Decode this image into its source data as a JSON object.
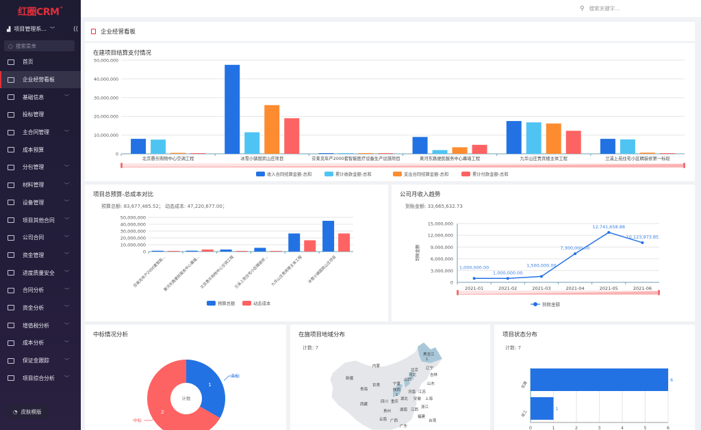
{
  "app": {
    "logo": "红圈CRM",
    "system": "项目管理系...",
    "search_placeholder": "搜索菜单",
    "skin_label": "皮肤模版",
    "top_search_placeholder": "搜索关键字..."
  },
  "sidebar": {
    "items": [
      {
        "label": "首页",
        "expandable": false,
        "icon": "home-icon"
      },
      {
        "label": "企业经营看板",
        "expandable": false,
        "active": true,
        "icon": "dashboard-icon"
      },
      {
        "label": "基础信息",
        "expandable": true,
        "icon": "copy-icon"
      },
      {
        "label": "投标管理",
        "expandable": false,
        "icon": "document-icon"
      },
      {
        "label": "主合同管理",
        "expandable": true,
        "icon": "window-icon"
      },
      {
        "label": "成本预算",
        "expandable": false,
        "icon": "budget-icon"
      },
      {
        "label": "分包管理",
        "expandable": true,
        "icon": "folder-icon"
      },
      {
        "label": "材料管理",
        "expandable": true,
        "icon": "folder-icon"
      },
      {
        "label": "设备管理",
        "expandable": true,
        "icon": "folder-icon"
      },
      {
        "label": "项目其他合同",
        "expandable": true,
        "icon": "window-icon"
      },
      {
        "label": "公司合同",
        "expandable": true,
        "icon": "window-icon"
      },
      {
        "label": "资金管理",
        "expandable": true,
        "icon": "copy-icon"
      },
      {
        "label": "进度质量安全",
        "expandable": true,
        "icon": "folder-icon"
      },
      {
        "label": "合同分析",
        "expandable": true,
        "icon": "copy-icon"
      },
      {
        "label": "资金分析",
        "expandable": true,
        "icon": "window-icon"
      },
      {
        "label": "增值税分析",
        "expandable": true,
        "icon": "folder-icon"
      },
      {
        "label": "成本分析",
        "expandable": true,
        "icon": "copy-icon"
      },
      {
        "label": "保证金跟踪",
        "expandable": true,
        "icon": "copy-icon"
      },
      {
        "label": "项目综合分析",
        "expandable": true,
        "icon": "folder-icon"
      }
    ]
  },
  "page": {
    "title": "企业经营看板"
  },
  "colors": {
    "blue": "#2272e4",
    "cyan": "#4fc4f2",
    "orange": "#fd8c31",
    "red": "#fe6363",
    "accent": "#e0303a"
  },
  "chart_data": [
    {
      "type": "bar",
      "title": "在建项目结算支付情况",
      "ylim": [
        0,
        50000000
      ],
      "yticks": [
        "0",
        "10,000,000",
        "20,000,000",
        "30,000,000",
        "40,000,000",
        "50,000,000"
      ],
      "grid": true,
      "legend": "bottom",
      "categories": [
        "北京愚乐购物中心空调工程",
        "冰雪小镇国宾山庄项目",
        "芬莱克年产2000套智能医疗设备生产设施项目",
        "黄河东路便民服务中心幕墙工程",
        "九华山庄贵宾楼主体工程",
        "兰溪上苑住宅小区精装修第一标段"
      ],
      "series": [
        {
          "name": "收入合同结算金额-总和",
          "values": [
            8000000,
            47500000,
            200000,
            9000000,
            17500000,
            8000000
          ]
        },
        {
          "name": "累计收款金额-总和",
          "values": [
            7600000,
            11500000,
            200000,
            2000000,
            16800000,
            7700000
          ]
        },
        {
          "name": "支出合同结算金额-总和",
          "values": [
            500000,
            26000000,
            200000,
            3500000,
            16200000,
            600000
          ]
        },
        {
          "name": "累计付款金额-总和",
          "values": [
            100000,
            19000000,
            200000,
            4800000,
            12300000,
            200000
          ]
        }
      ]
    },
    {
      "type": "bar",
      "title": "项目总预算-总成本对比",
      "summary": "预算总额: 83,677,485.52；  动态成本: 47,220,677.00；",
      "ylim": [
        0,
        50000000
      ],
      "yticks": [
        "0",
        "10,000,000",
        "20,000,000",
        "30,000,000",
        "40,000,000",
        "50,000,000"
      ],
      "grid": true,
      "legend": "bottom",
      "categories": [
        "芬莱克年产2000套智能...",
        "黄河东路便民服务中心幕墙...",
        "北京愚乐购物中心空调工程",
        "兰溪上苑住宅小区精装修...",
        "九华山庄贵宾楼主体工程",
        "冰雪小镇国宾山庄项目"
      ],
      "series": [
        {
          "name": "预算总额",
          "values": [
            1200000,
            1300000,
            3000000,
            5500000,
            26500000,
            45000000
          ]
        },
        {
          "name": "动态成本",
          "values": [
            300000,
            3000000,
            200000,
            800000,
            16500000,
            26500000
          ]
        }
      ]
    },
    {
      "type": "line",
      "title": "公司月收入趋势",
      "summary": "到账金额: 33,665,632.73",
      "ylabel": "到账金额",
      "ylim": [
        0,
        15000000
      ],
      "yticks": [
        "0",
        "3,000,000",
        "6,000,000",
        "9,000,000",
        "12,000,000",
        "15,000,000"
      ],
      "grid": true,
      "legend": "bottom",
      "x": [
        "2021-01",
        "2021-02",
        "2021-03",
        "2021-04",
        "2021-05",
        "2021-06"
      ],
      "series": [
        {
          "name": "到账金额",
          "values": [
            1000000,
            1000000,
            1500000,
            7300000,
            12741658.88,
            10123973.85
          ],
          "labels": [
            "1,000,000.00",
            "1,000,000.00",
            "1,500,000.00",
            "7,300,000.00",
            "12,741,658.88",
            "10,123,973.85"
          ]
        }
      ]
    },
    {
      "type": "pie",
      "title": "中标情况分析",
      "center_label": "计数",
      "slices": [
        {
          "name": "未标",
          "value": 1
        },
        {
          "name": "中标",
          "value": 2
        }
      ]
    },
    {
      "type": "map",
      "title": "在施项目地域分布",
      "summary": "计数: 7",
      "regions": [
        {
          "name": "黑龙江",
          "value": 1
        },
        {
          "name": "陕西",
          "value": 1
        },
        {
          "name": "山西",
          "value": null
        },
        {
          "name": "北京",
          "value": null
        },
        {
          "name": "河北",
          "value": null
        }
      ],
      "labels": [
        "内蒙",
        "吉林",
        "辽宁",
        "新疆",
        "甘肃",
        "宁夏",
        "山东",
        "青海",
        "河南",
        "江苏",
        "西藏",
        "四川",
        "重庆",
        "湖北",
        "安徽",
        "上海",
        "浙江",
        "贵州",
        "湖南",
        "江西",
        "云南",
        "福建",
        "广西",
        "广东",
        "台湾"
      ]
    },
    {
      "type": "bar",
      "orientation": "horizontal",
      "title": "项目状态分布",
      "summary": "计数: 7",
      "categories": [
        "在建",
        "竣工"
      ],
      "values": [
        6,
        1
      ],
      "xlim": [
        0,
        6
      ],
      "xticks": [
        "0",
        "1",
        "2",
        "3",
        "4",
        "5",
        "6"
      ],
      "grid": true
    }
  ]
}
